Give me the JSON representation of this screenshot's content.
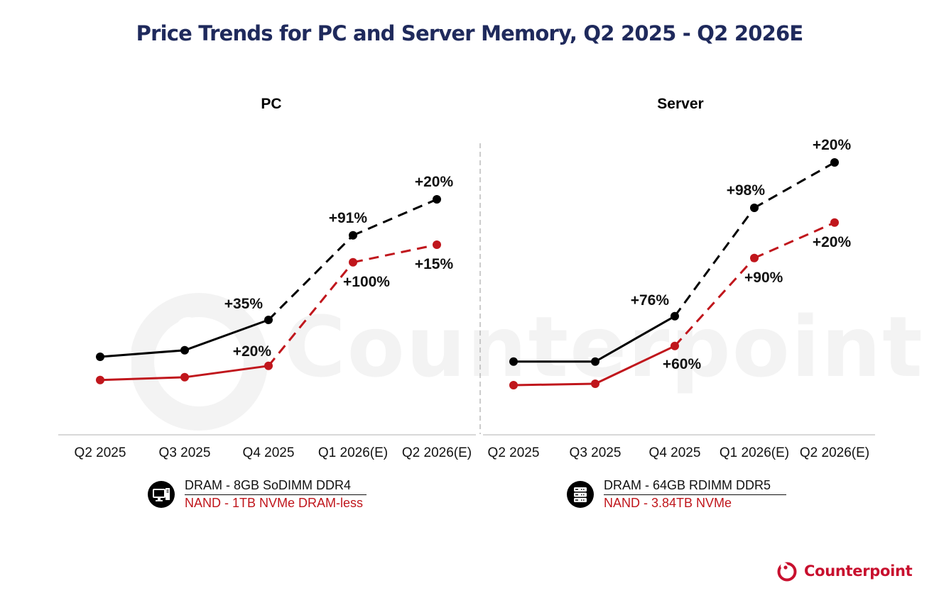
{
  "title": "Price Trends for PC and Server Memory, Q2 2025 - Q2 2026E",
  "brand": {
    "name": "Counterpoint",
    "color": "#c8102e",
    "watermark": "Counterpoint"
  },
  "colors": {
    "dram": "#000000",
    "nand": "#c0161c",
    "title": "#1f2a5c",
    "axis": "#cccccc",
    "divider": "#aaaaaa"
  },
  "chart_data": [
    {
      "type": "line",
      "title": "PC",
      "categories": [
        "Q2 2025",
        "Q3 2025",
        "Q4 2025",
        "Q1 2026(E)",
        "Q2 2026(E)"
      ],
      "xlabel": "",
      "ylabel": "",
      "y_axis_visible": false,
      "grid": false,
      "ylim": [
        0,
        100
      ],
      "value_unit": "relative price index (estimated from point positions; no y-axis shown)",
      "estimated_from": "Q4 2025",
      "legend_placement": "bottom",
      "legend_icon": "desktop-pc-icon",
      "series": [
        {
          "name": "DRAM - 8GB SoDIMM DDR4",
          "color": "#000000",
          "values": [
            27.5,
            29.8,
            40.5,
            70.3,
            83.0
          ],
          "labels": [
            null,
            null,
            "+35%",
            "+91%",
            "+20%"
          ],
          "label_pos": [
            null,
            null,
            "above-left",
            "above-left",
            "above"
          ]
        },
        {
          "name": "NAND - 1TB NVMe DRAM-less",
          "color": "#c0161c",
          "values": [
            19.3,
            20.3,
            24.3,
            60.8,
            67.0
          ],
          "labels": [
            null,
            null,
            "+20%",
            "+100%",
            "+15%"
          ],
          "label_pos": [
            null,
            null,
            "above-left",
            "below-right",
            "below"
          ]
        }
      ]
    },
    {
      "type": "line",
      "title": "Server",
      "categories": [
        "Q2 2025",
        "Q3 2025",
        "Q4 2025",
        "Q1 2026(E)",
        "Q2 2026(E)"
      ],
      "xlabel": "",
      "ylabel": "",
      "y_axis_visible": false,
      "grid": false,
      "ylim": [
        0,
        100
      ],
      "value_unit": "relative price index (estimated from point positions; no y-axis shown)",
      "estimated_from": "Q4 2025",
      "legend_placement": "bottom",
      "legend_icon": "server-rack-icon",
      "series": [
        {
          "name": "DRAM - 64GB RDIMM DDR5",
          "color": "#000000",
          "values": [
            25.8,
            25.8,
            41.8,
            80.0,
            96.0
          ],
          "labels": [
            null,
            null,
            "+76%",
            "+98%",
            "+20%"
          ],
          "label_pos": [
            null,
            null,
            "above-left",
            "above-left",
            "above"
          ]
        },
        {
          "name": "NAND - 3.84TB NVMe",
          "color": "#c0161c",
          "values": [
            17.5,
            18.0,
            31.3,
            62.3,
            74.8
          ],
          "labels": [
            null,
            null,
            "+60%",
            "+90%",
            "+20%"
          ],
          "label_pos": [
            null,
            null,
            "below",
            "below-right",
            "below"
          ]
        }
      ]
    }
  ]
}
